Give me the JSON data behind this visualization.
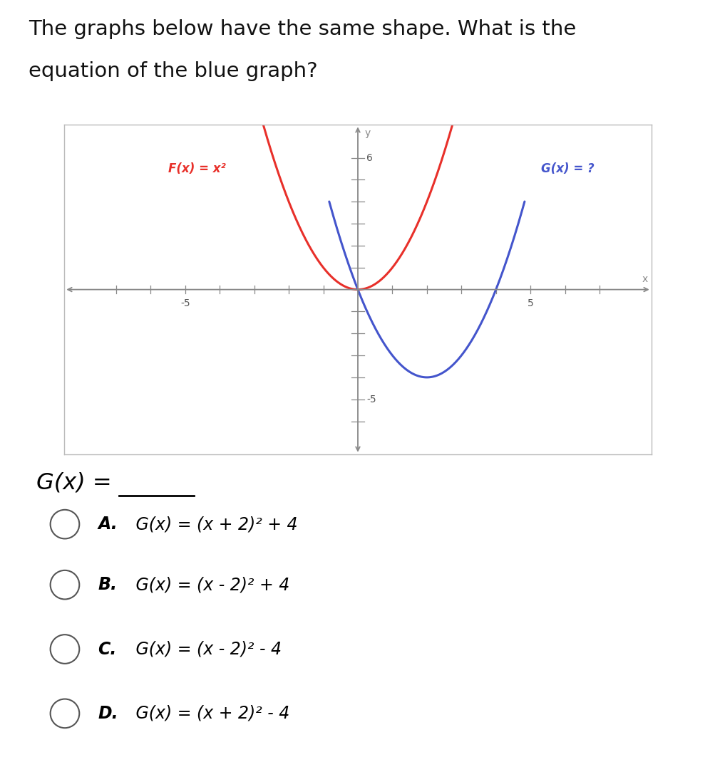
{
  "title_line1": "The graphs below have the same shape. What is the",
  "title_line2": "equation of the blue graph?",
  "fx_label": "F(x) = x²",
  "gx_label": "G(x) = ?",
  "red_color": "#e8302a",
  "blue_color": "#4455cc",
  "axis_color": "#888888",
  "tick_color": "#888888",
  "border_color": "#bbbbbb",
  "xlim": [
    -8.5,
    8.5
  ],
  "ylim": [
    -7.5,
    7.5
  ],
  "options": [
    {
      "letter": "A",
      "bold": "A.",
      "text": " G(x) = (x + 2)² + 4"
    },
    {
      "letter": "B",
      "bold": "B.",
      "text": " G(x) = (x - 2)² + 4"
    },
    {
      "letter": "C",
      "bold": "C.",
      "text": " G(x) = (x - 2)² - 4"
    },
    {
      "letter": "D",
      "bold": "D.",
      "text": " G(x) = (x + 2)² - 4"
    }
  ],
  "background_color": "#ffffff",
  "plot_bg_color": "#ffffff",
  "fig_width": 10.04,
  "fig_height": 10.63
}
